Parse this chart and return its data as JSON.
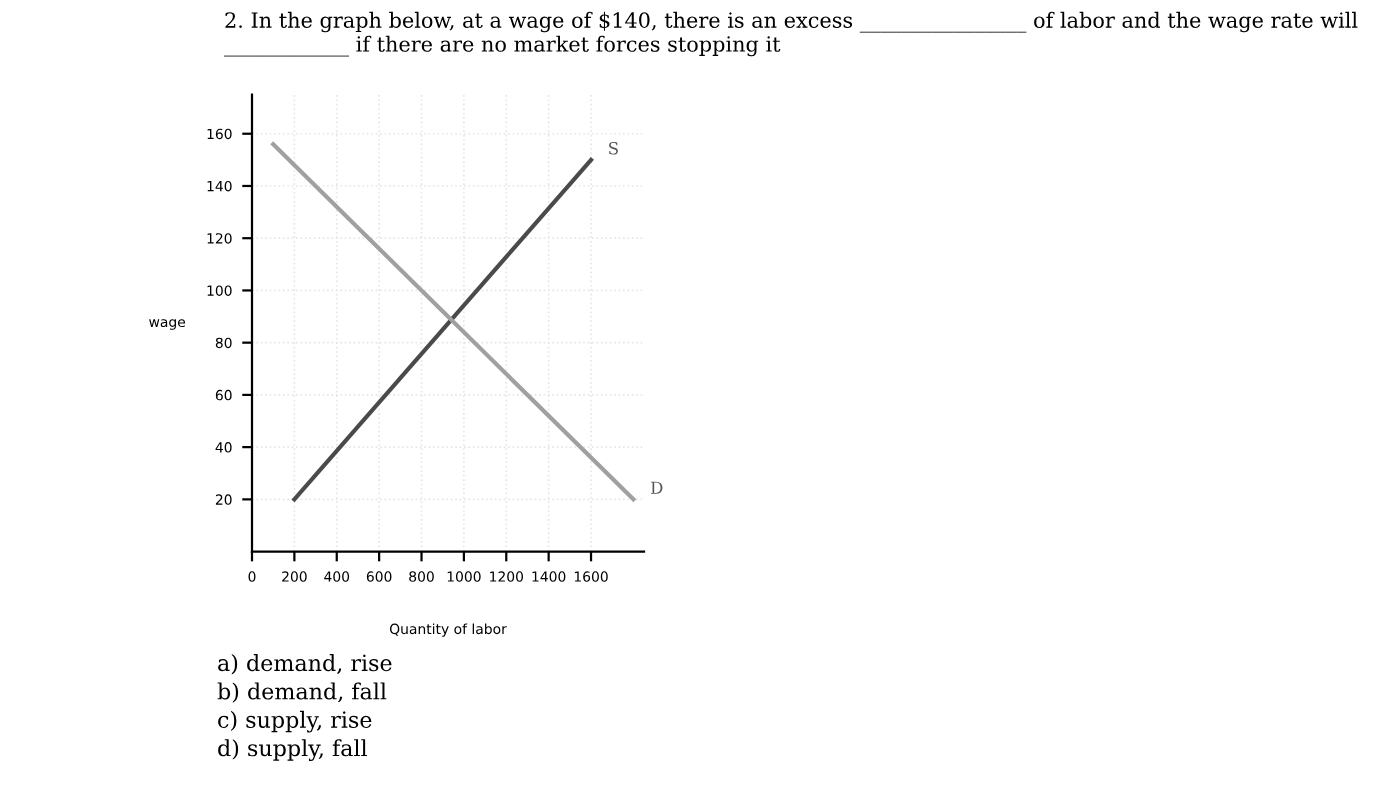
{
  "chart_data": {
    "type": "line",
    "title": "2. In the graph below, at a wage of $140, there is an excess ________________ of labor and the wage rate will ____________ if there are no market forces stopping it",
    "xlabel": "Quantity of labor",
    "ylabel": "wage",
    "series": [
      {
        "name": "S",
        "color": "#4a4a4a",
        "x": [
          200,
          1600
        ],
        "values": [
          20,
          150
        ]
      },
      {
        "name": "D",
        "color": "#a0a0a0",
        "x": [
          100,
          1800
        ],
        "values": [
          156,
          20
        ]
      }
    ],
    "xlim": [
      0,
      1850
    ],
    "ylim": [
      0,
      175
    ],
    "xticks": [
      0,
      200,
      400,
      600,
      800,
      1000,
      1200,
      1400,
      1600
    ],
    "yticks": [
      20,
      40,
      60,
      80,
      100,
      120,
      140,
      160
    ],
    "grid": true,
    "legend": false,
    "marker": "none",
    "line_style": "solid",
    "annotations": [
      "a) demand, rise",
      "b) demand, fall",
      "c) supply, rise",
      "d) supply, fall"
    ]
  }
}
